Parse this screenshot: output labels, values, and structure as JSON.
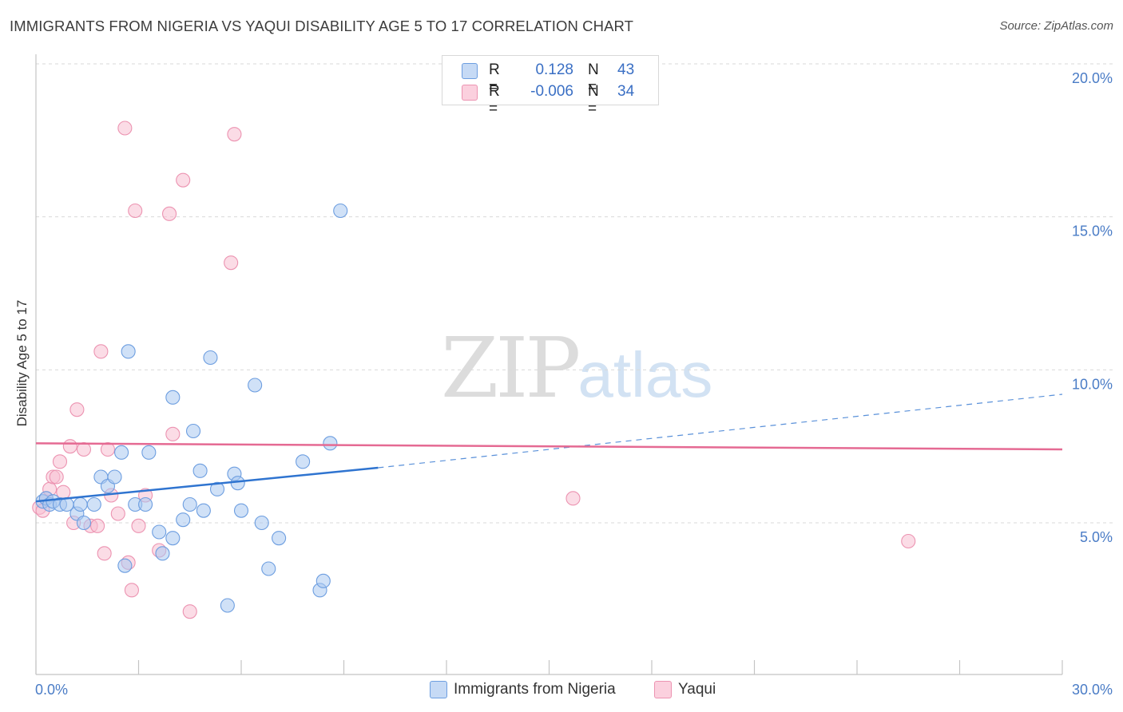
{
  "header": {
    "title": "IMMIGRANTS FROM NIGERIA VS YAQUI DISABILITY AGE 5 TO 17 CORRELATION CHART",
    "source": "Source: ZipAtlas.com"
  },
  "watermark": {
    "zip": "ZIP",
    "atlas": "atlas"
  },
  "legend": {
    "r_label": "R =",
    "n_label": "N =",
    "series": [
      {
        "r": "0.128",
        "n": "43"
      },
      {
        "r": "-0.006",
        "n": "34"
      }
    ]
  },
  "colors": {
    "nigeria_fill": "#a9c8f0",
    "nigeria_stroke": "#6d9ee0",
    "nigeria_line": "#2f74d0",
    "yaqui_fill": "#f8bfd1",
    "yaqui_stroke": "#ec93b1",
    "yaqui_line": "#e56a93",
    "grid": "#d9d9d9",
    "axis_text": "#4a7cc6"
  },
  "chart_data": {
    "type": "scatter",
    "title": "IMMIGRANTS FROM NIGERIA VS YAQUI DISABILITY AGE 5 TO 17 CORRELATION CHART",
    "xlabel": "",
    "ylabel": "Disability Age 5 to 17",
    "xlim": [
      0,
      30
    ],
    "ylim": [
      0,
      20
    ],
    "x_tick_labels": [
      "0.0%",
      "30.0%"
    ],
    "y_ticks": [
      5,
      10,
      15,
      20
    ],
    "y_tick_labels": [
      "5.0%",
      "10.0%",
      "15.0%",
      "20.0%"
    ],
    "series": [
      {
        "name": "Immigrants from Nigeria",
        "color": "#6d9ee0",
        "points": [
          [
            0.2,
            5.7
          ],
          [
            0.3,
            5.8
          ],
          [
            0.4,
            5.6
          ],
          [
            0.5,
            5.7
          ],
          [
            0.7,
            5.6
          ],
          [
            0.9,
            5.6
          ],
          [
            1.2,
            5.3
          ],
          [
            1.3,
            5.6
          ],
          [
            1.4,
            5.0
          ],
          [
            1.7,
            5.6
          ],
          [
            1.9,
            6.5
          ],
          [
            2.1,
            6.2
          ],
          [
            2.3,
            6.5
          ],
          [
            2.5,
            7.3
          ],
          [
            2.6,
            3.6
          ],
          [
            2.7,
            10.6
          ],
          [
            2.9,
            5.6
          ],
          [
            3.2,
            5.6
          ],
          [
            3.3,
            7.3
          ],
          [
            3.6,
            4.7
          ],
          [
            3.7,
            4.0
          ],
          [
            4.0,
            9.1
          ],
          [
            4.0,
            4.5
          ],
          [
            4.3,
            5.1
          ],
          [
            4.5,
            5.6
          ],
          [
            4.6,
            8.0
          ],
          [
            4.8,
            6.7
          ],
          [
            4.9,
            5.4
          ],
          [
            5.1,
            10.4
          ],
          [
            5.3,
            6.1
          ],
          [
            5.6,
            2.3
          ],
          [
            5.8,
            6.6
          ],
          [
            5.9,
            6.3
          ],
          [
            6.0,
            5.4
          ],
          [
            6.4,
            9.5
          ],
          [
            6.6,
            5.0
          ],
          [
            6.8,
            3.5
          ],
          [
            7.1,
            4.5
          ],
          [
            7.8,
            7.0
          ],
          [
            8.3,
            2.8
          ],
          [
            8.4,
            3.1
          ],
          [
            8.6,
            7.6
          ],
          [
            8.9,
            15.2
          ]
        ],
        "trend": {
          "x": [
            0,
            10
          ],
          "y": [
            5.7,
            6.8
          ],
          "dashed_to": [
            30,
            9.2
          ]
        }
      },
      {
        "name": "Yaqui",
        "color": "#ec93b1",
        "points": [
          [
            0.1,
            5.5
          ],
          [
            0.2,
            5.4
          ],
          [
            0.3,
            5.8
          ],
          [
            0.4,
            6.1
          ],
          [
            0.5,
            6.5
          ],
          [
            0.6,
            6.5
          ],
          [
            0.7,
            7.0
          ],
          [
            0.8,
            6.0
          ],
          [
            1.0,
            7.5
          ],
          [
            1.1,
            5.0
          ],
          [
            1.2,
            8.7
          ],
          [
            1.4,
            7.4
          ],
          [
            1.6,
            4.9
          ],
          [
            1.8,
            4.9
          ],
          [
            1.9,
            10.6
          ],
          [
            2.0,
            4.0
          ],
          [
            2.1,
            7.4
          ],
          [
            2.2,
            5.9
          ],
          [
            2.4,
            5.3
          ],
          [
            2.6,
            17.9
          ],
          [
            2.7,
            3.7
          ],
          [
            2.8,
            2.8
          ],
          [
            2.9,
            15.2
          ],
          [
            3.0,
            4.9
          ],
          [
            3.2,
            5.9
          ],
          [
            3.6,
            4.1
          ],
          [
            3.9,
            15.1
          ],
          [
            4.0,
            7.9
          ],
          [
            4.3,
            16.2
          ],
          [
            4.5,
            2.1
          ],
          [
            5.7,
            13.5
          ],
          [
            5.8,
            17.7
          ],
          [
            15.7,
            5.8
          ],
          [
            25.5,
            4.4
          ]
        ],
        "trend": {
          "x": [
            0,
            30
          ],
          "y": [
            7.6,
            7.4
          ]
        }
      }
    ]
  },
  "bottom_legend": {
    "nigeria": "Immigrants from Nigeria",
    "yaqui": "Yaqui"
  }
}
